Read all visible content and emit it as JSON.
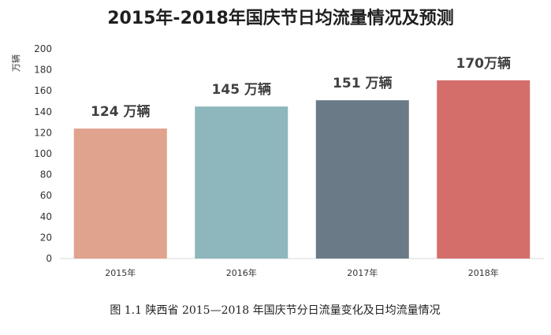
{
  "chart_data": {
    "type": "bar",
    "title": "2015年-2018年国庆节日均流量情况及预测",
    "ylabel": "万辆",
    "xlabel": "",
    "categories": [
      "2015年",
      "2016年",
      "2017年",
      "2018年"
    ],
    "values": [
      124,
      145,
      151,
      170
    ],
    "data_labels": [
      "124 万辆",
      "145 万辆",
      "151 万辆",
      "170万辆"
    ],
    "bar_colors": [
      "#dfa38e",
      "#8db6bd",
      "#6a7a87",
      "#d46e6a"
    ],
    "ylim": [
      0,
      200
    ],
    "yticks": [
      0,
      20,
      40,
      60,
      80,
      100,
      120,
      140,
      160,
      180,
      200
    ],
    "grid": false,
    "legend": "none"
  },
  "caption": "图 1.1   陕西省 2015—2018 年国庆节分日流量变化及日均流量情况"
}
